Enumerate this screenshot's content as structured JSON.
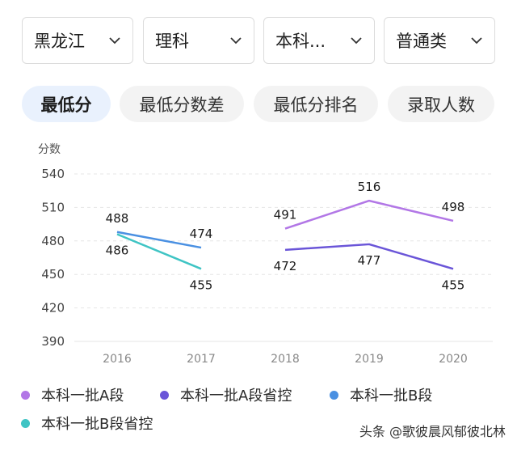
{
  "filters": [
    {
      "label": "黑龙江"
    },
    {
      "label": "理科"
    },
    {
      "label": "本科..."
    },
    {
      "label": "普通类"
    }
  ],
  "tabs": [
    {
      "label": "最低分",
      "active": true
    },
    {
      "label": "最低分数差",
      "active": false
    },
    {
      "label": "最低分排名",
      "active": false
    },
    {
      "label": "录取人数",
      "active": false
    }
  ],
  "colors": {
    "accent_tab_bg": "#e9f1fd",
    "grid": "#e6e6e6"
  },
  "chart_data": {
    "type": "line",
    "title": "",
    "xlabel": "",
    "ylabel": "分数",
    "ylim": [
      390,
      540
    ],
    "yticks": [
      540,
      510,
      480,
      450,
      420,
      390
    ],
    "categories": [
      "2016",
      "2017",
      "2018",
      "2019",
      "2020"
    ],
    "grid": true,
    "legend_position": "bottom",
    "series": [
      {
        "name": "本科一批A段",
        "color": "#b277e6",
        "values": [
          null,
          null,
          491,
          516,
          498
        ]
      },
      {
        "name": "本科一批A段省控",
        "color": "#6a55d8",
        "values": [
          null,
          null,
          472,
          477,
          455
        ]
      },
      {
        "name": "本科一批B段",
        "color": "#4a90e2",
        "values": [
          488,
          474,
          null,
          null,
          null
        ]
      },
      {
        "name": "本科一批B段省控",
        "color": "#3fc4c4",
        "values": [
          486,
          455,
          null,
          null,
          null
        ]
      }
    ]
  },
  "watermark": "头条 @歌彼晨风郁彼北林"
}
